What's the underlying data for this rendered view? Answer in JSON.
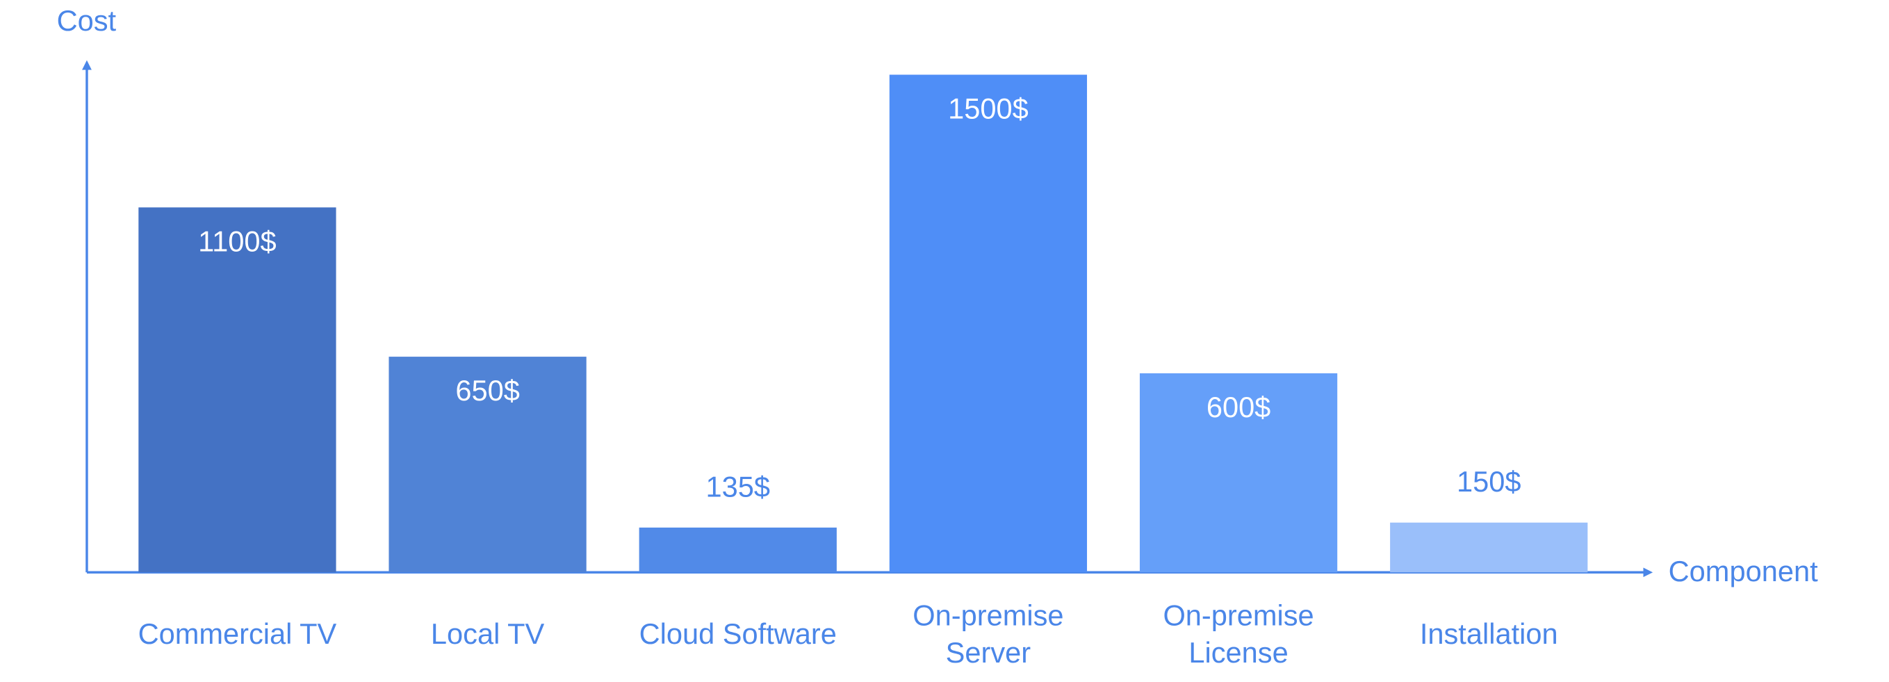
{
  "chart_data": {
    "type": "bar",
    "y_label": "Cost",
    "x_label": "Component",
    "categories": [
      "Commercial TV",
      "Local TV",
      "Cloud Software",
      "On-premise\nServer",
      "On-premise\nLicense",
      "Installation"
    ],
    "values": [
      1100,
      650,
      135,
      1500,
      600,
      150
    ],
    "value_labels": [
      "1100$",
      "650$",
      "135$",
      "1500$",
      "600$",
      "150$"
    ],
    "colors": [
      "#4472c4",
      "#5083d6",
      "#518ae8",
      "#4f8ef7",
      "#659ff9",
      "#9abffa"
    ],
    "ylim": [
      0,
      1500
    ]
  }
}
